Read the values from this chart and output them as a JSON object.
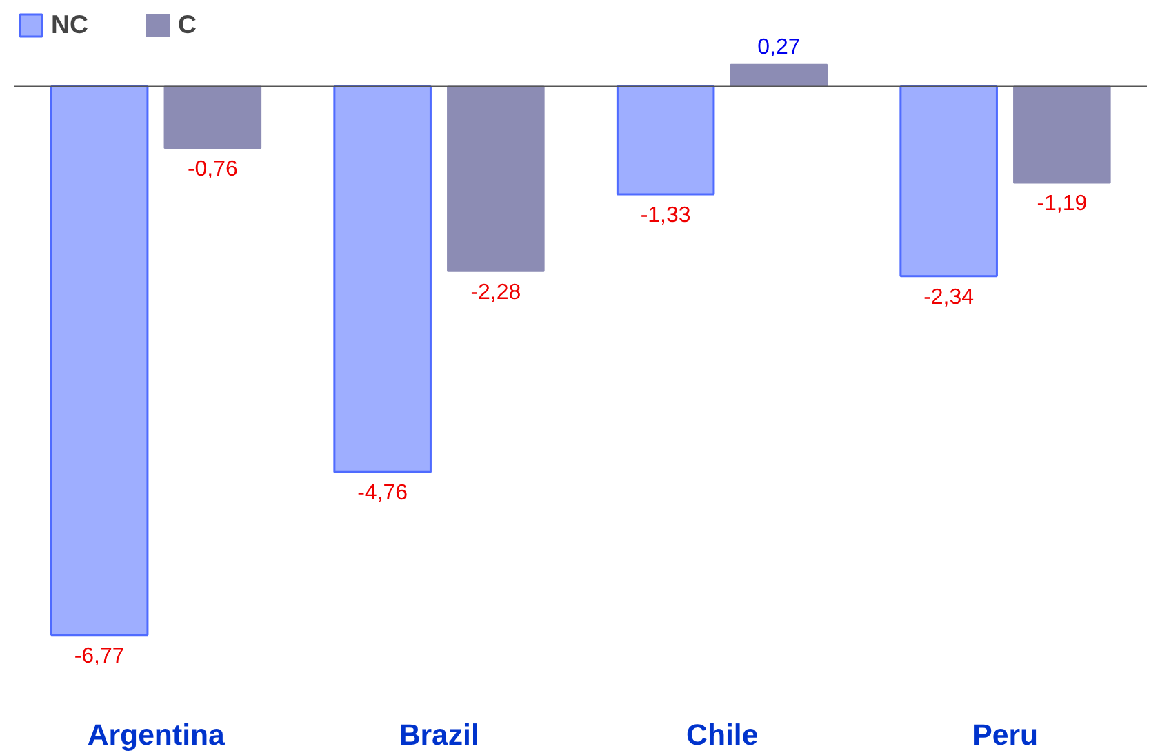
{
  "chart_data": {
    "type": "bar",
    "categories": [
      "Argentina",
      "Brazil",
      "Chile",
      "Peru"
    ],
    "series": [
      {
        "name": "NC",
        "color": "#4f6bff",
        "values": [
          -6.77,
          -4.76,
          -1.33,
          -2.34
        ],
        "value_labels": [
          "-6,77",
          "-4,76",
          "-1,33",
          "-2,34"
        ]
      },
      {
        "name": "C",
        "color": "#8c8cb4",
        "values": [
          -0.76,
          -2.28,
          0.27,
          -1.19
        ],
        "value_labels": [
          "-0,76",
          "-2,28",
          "0,27",
          "-1,19"
        ]
      }
    ],
    "legend": "top left"
  }
}
